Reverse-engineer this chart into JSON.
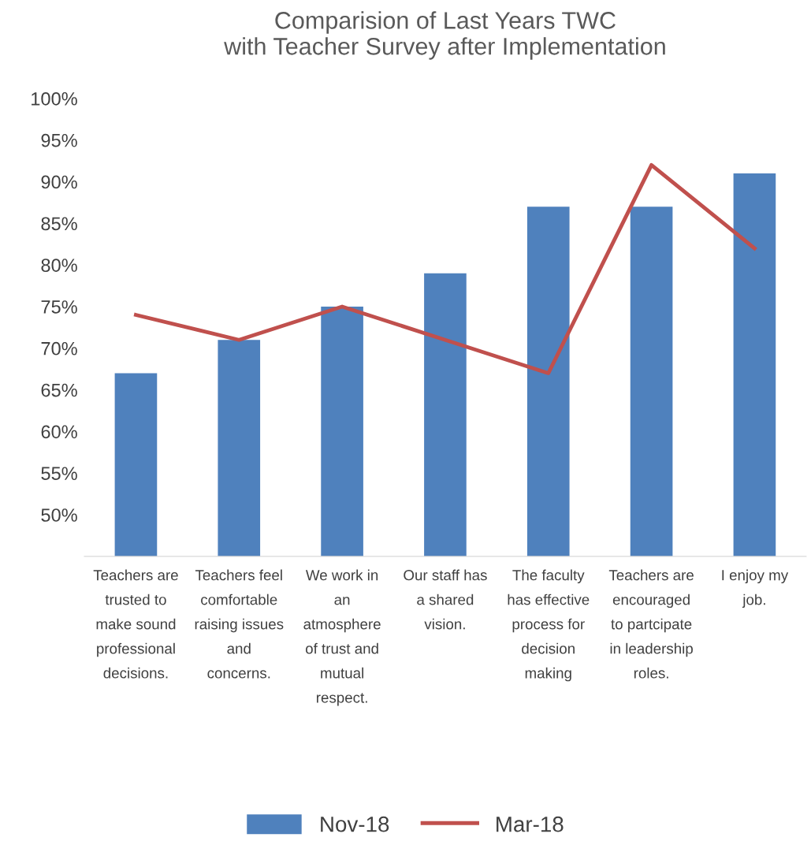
{
  "chart_data": {
    "type": "bar",
    "title": "Comparision of Last Years TWC\nwith Teacher Survey after Implementation",
    "categories": [
      "Teachers are\ntrusted to\nmake sound\nprofessional\ndecisions.",
      "Teachers feel\ncomfortable\nraising issues\nand\nconcerns.",
      "We work in\nan\natmosphere\nof trust and\nmutual\nrespect.",
      "Our staff has\na shared\nvision.",
      "The faculty\nhas effective\nprocess for\ndecision\nmaking",
      "Teachers are\nencouraged\nto partcipate\nin leadership\nroles.",
      "I enjoy my\njob."
    ],
    "series": [
      {
        "name": "Nov-18",
        "color": "#4f81bd",
        "values": [
          67,
          71,
          75,
          79,
          87,
          87,
          91
        ]
      },
      {
        "name": "Mar-18",
        "type": "line",
        "color": "#c0504d",
        "values": [
          74,
          71,
          75,
          71,
          67,
          92,
          82
        ]
      }
    ],
    "ylim": [
      45,
      100
    ],
    "yticks": [
      {
        "value": 50,
        "label": "50%"
      },
      {
        "value": 55,
        "label": "55%"
      },
      {
        "value": 60,
        "label": "60%"
      },
      {
        "value": 65,
        "label": "65%"
      },
      {
        "value": 70,
        "label": "70%"
      },
      {
        "value": 75,
        "label": "75%"
      },
      {
        "value": 80,
        "label": "80%"
      },
      {
        "value": 85,
        "label": "85%"
      },
      {
        "value": 90,
        "label": "90%"
      },
      {
        "value": 95,
        "label": "95%"
      },
      {
        "value": 100,
        "label": "100%"
      }
    ],
    "grid": false,
    "legend": "bottom",
    "marker": "none",
    "line_style": "solid"
  }
}
